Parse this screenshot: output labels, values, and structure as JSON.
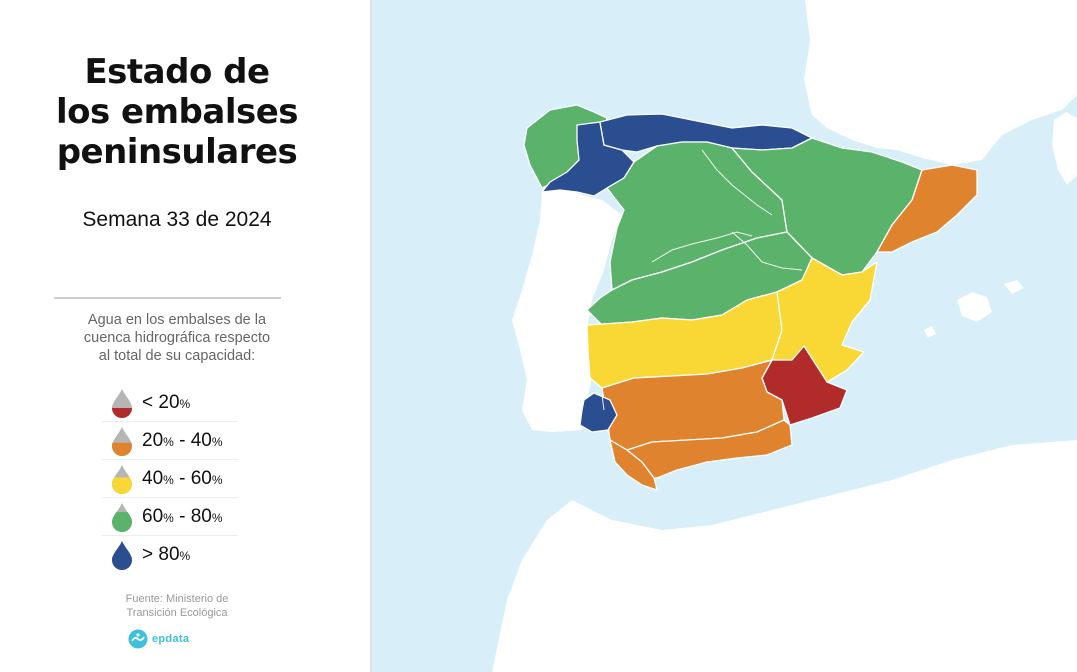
{
  "title": {
    "line1": "Estado de",
    "line2": "los embalses",
    "line3": "peninsulares"
  },
  "subtitle": "Semana 33 de 2024",
  "legend": {
    "heading": {
      "line1": "Agua en los embalses de la",
      "line2": "cuenca hidrográfica respecto",
      "line3": "al total de su capacidad:"
    },
    "items": [
      {
        "a": "< 20",
        "pa": "%",
        "sep": "",
        "b": "",
        "pb": "",
        "color": "#b22b2b",
        "level": 0.15
      },
      {
        "a": "20",
        "pa": "%",
        "sep": " - ",
        "b": "40",
        "pb": "%",
        "color": "#e0832f",
        "level": 0.35
      },
      {
        "a": "40",
        "pa": "%",
        "sep": " - ",
        "b": "60",
        "pb": "%",
        "color": "#f9d835",
        "level": 0.55
      },
      {
        "a": "60",
        "pa": "%",
        "sep": " - ",
        "b": "80",
        "pb": "%",
        "color": "#5ab26b",
        "level": 0.75
      },
      {
        "a": "> 80",
        "pa": "%",
        "sep": "",
        "b": "",
        "pb": "",
        "color": "#2a4e8f",
        "level": 1.0
      }
    ]
  },
  "source": {
    "line1": "Fuente: Ministerio de",
    "line2": "Transición Ecológica"
  },
  "logo": {
    "text": "epdata",
    "icon": "epdata-logo-icon",
    "color": "#3ec0dc"
  },
  "map": {
    "sea_color": "#d8eef8",
    "land_color": "#ffffff",
    "basins": [
      {
        "id": "galicia-costa",
        "status": "60-80",
        "color": "#5ab26b"
      },
      {
        "id": "mino-sil",
        "status": ">80",
        "color": "#2a4e8f"
      },
      {
        "id": "cantabrico",
        "status": ">80",
        "color": "#2a4e8f"
      },
      {
        "id": "duero",
        "status": "60-80",
        "color": "#5ab26b"
      },
      {
        "id": "ebro",
        "status": "60-80",
        "color": "#5ab26b"
      },
      {
        "id": "tajo",
        "status": "60-80",
        "color": "#5ab26b"
      },
      {
        "id": "cataluna",
        "status": "20-40",
        "color": "#e0832f"
      },
      {
        "id": "guadiana",
        "status": "40-60",
        "color": "#f9d835"
      },
      {
        "id": "jucar",
        "status": "40-60",
        "color": "#f9d835"
      },
      {
        "id": "segura",
        "status": "<20",
        "color": "#b22b2b"
      },
      {
        "id": "guadalquivir",
        "status": "20-40",
        "color": "#e0832f"
      },
      {
        "id": "tinto-odiel-piedras",
        "status": ">80",
        "color": "#2a4e8f"
      },
      {
        "id": "guadalete-barbate",
        "status": "20-40",
        "color": "#e0832f"
      },
      {
        "id": "mediterranea-andaluza",
        "status": "20-40",
        "color": "#e0832f"
      }
    ]
  }
}
